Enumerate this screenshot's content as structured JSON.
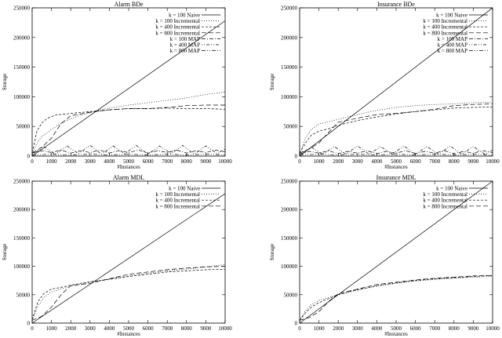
{
  "chart_data": [
    {
      "type": "line",
      "title": "Alarm BDe",
      "xlabel": "#Instances",
      "ylabel": "Storage",
      "xlim": [
        0,
        10000
      ],
      "ylim": [
        0,
        250000
      ],
      "xticks": [
        0,
        1000,
        2000,
        3000,
        4000,
        5000,
        6000,
        7000,
        8000,
        9000,
        10000
      ],
      "yticks": [
        0,
        50000,
        100000,
        150000,
        200000,
        250000
      ],
      "legend_position": "top-right",
      "series": [
        {
          "name": "k = 100 Naive",
          "dash": "solid",
          "x": [
            0,
            10000
          ],
          "y": [
            0,
            228000
          ]
        },
        {
          "name": "k = 100 Incremental",
          "dash": "dotted",
          "x": [
            0,
            250,
            500,
            1000,
            1500,
            2000,
            2500,
            3000,
            3500,
            4000,
            5000,
            6000,
            7000,
            8000,
            9000,
            10000
          ],
          "y": [
            4000,
            22000,
            33000,
            45000,
            55000,
            63000,
            69000,
            73000,
            78000,
            81000,
            86000,
            90000,
            94000,
            98000,
            104000,
            108000
          ]
        },
        {
          "name": "k = 400 Incremental",
          "dash": "shortdash",
          "x": [
            0,
            250,
            500,
            800,
            1200,
            2000,
            3000,
            4000,
            5000,
            6000,
            7000,
            8000,
            9000,
            10000
          ],
          "y": [
            6000,
            42000,
            56000,
            64000,
            69000,
            72000,
            75000,
            78000,
            80000,
            80000,
            81000,
            80000,
            80000,
            79000
          ]
        },
        {
          "name": "k = 800 Incremental",
          "dash": "longdash",
          "x": [
            0,
            500,
            1000,
            1500,
            2000,
            3000,
            4000,
            5000,
            6000,
            7000,
            8000,
            9000,
            10000
          ],
          "y": [
            5000,
            15000,
            30000,
            55000,
            68000,
            74000,
            78000,
            80000,
            80000,
            82000,
            85000,
            86000,
            86000
          ]
        },
        {
          "name": "k = 100 MAP",
          "dash": "dashdot",
          "x": [
            0,
            500,
            1000,
            1500,
            2000,
            2500,
            3000,
            3500,
            4000,
            4500,
            5000,
            5500,
            6000,
            6500,
            7000,
            7500,
            8000,
            8500,
            9000,
            9500,
            10000
          ],
          "y": [
            5000,
            9000,
            6000,
            10000,
            5000,
            9000,
            6000,
            10000,
            5000,
            9000,
            6000,
            10000,
            5000,
            9000,
            6000,
            10000,
            5000,
            9000,
            6000,
            10000,
            7000
          ]
        },
        {
          "name": "k = 400 MAP",
          "dash": "dotdash",
          "x": [
            0,
            600,
            1200,
            1800,
            2400,
            3000,
            3600,
            4200,
            4800,
            5400,
            6000,
            6600,
            7200,
            7800,
            8400,
            9000,
            9600,
            10000
          ],
          "y": [
            2000,
            16000,
            3000,
            17000,
            4000,
            18000,
            3000,
            17000,
            4000,
            18000,
            3000,
            17000,
            4000,
            18000,
            3000,
            17000,
            4000,
            12000
          ]
        },
        {
          "name": "k = 800 MAP",
          "dash": "dashdotdot",
          "x": [
            0,
            1000,
            2000,
            3000,
            4000,
            5000,
            6000,
            7000,
            8000,
            9000,
            10000
          ],
          "y": [
            2000,
            3000,
            2000,
            3000,
            2000,
            3000,
            2000,
            3000,
            2000,
            3000,
            2000
          ]
        }
      ]
    },
    {
      "type": "line",
      "title": "Insurance BDe",
      "xlabel": "#Instances",
      "ylabel": "Storage",
      "xlim": [
        0,
        10000
      ],
      "ylim": [
        0,
        250000
      ],
      "xticks": [
        0,
        1000,
        2000,
        3000,
        4000,
        5000,
        6000,
        7000,
        8000,
        9000,
        10000
      ],
      "yticks": [
        0,
        50000,
        100000,
        150000,
        200000,
        250000
      ],
      "legend_position": "top-right",
      "series": [
        {
          "name": "k = 100 Naive",
          "dash": "solid",
          "x": [
            0,
            10000
          ],
          "y": [
            0,
            250000
          ]
        },
        {
          "name": "k = 100 Incremental",
          "dash": "dotted",
          "x": [
            0,
            300,
            600,
            1000,
            1500,
            2000,
            3000,
            4000,
            5000,
            6000,
            7000,
            8000,
            9000,
            10000
          ],
          "y": [
            4000,
            30000,
            45000,
            54000,
            58000,
            62000,
            70000,
            77000,
            82000,
            85000,
            87000,
            88000,
            90000,
            91000
          ]
        },
        {
          "name": "k = 400 Incremental",
          "dash": "shortdash",
          "x": [
            0,
            300,
            600,
            1000,
            1500,
            2000,
            3000,
            4000,
            5000,
            6000,
            7000,
            8000,
            9000,
            10000
          ],
          "y": [
            5000,
            22000,
            35000,
            42000,
            46000,
            52000,
            60000,
            66000,
            71000,
            75000,
            78000,
            81000,
            82000,
            83000
          ]
        },
        {
          "name": "k = 800 Incremental",
          "dash": "longdash",
          "x": [
            0,
            500,
            1000,
            1500,
            2000,
            3000,
            4000,
            5000,
            6000,
            7000,
            8000,
            9000,
            10000
          ],
          "y": [
            5000,
            12000,
            22000,
            40000,
            57000,
            64000,
            70000,
            72000,
            75000,
            79000,
            85000,
            87000,
            88000
          ]
        },
        {
          "name": "k = 100 MAP",
          "dash": "dashdot",
          "x": [
            0,
            500,
            1000,
            1500,
            2000,
            2500,
            3000,
            3500,
            4000,
            4500,
            5000,
            5500,
            6000,
            6500,
            7000,
            7500,
            8000,
            8500,
            9000,
            9500,
            10000
          ],
          "y": [
            4000,
            8000,
            5000,
            9000,
            4000,
            8000,
            5000,
            9000,
            4000,
            8000,
            5000,
            9000,
            4000,
            8000,
            5000,
            9000,
            4000,
            8000,
            5000,
            9000,
            6000
          ]
        },
        {
          "name": "k = 400 MAP",
          "dash": "dotdash",
          "x": [
            0,
            600,
            1200,
            1800,
            2400,
            3000,
            3600,
            4200,
            4800,
            5400,
            6000,
            6600,
            7200,
            7800,
            8400,
            9000,
            9600,
            10000
          ],
          "y": [
            2000,
            15000,
            3000,
            16000,
            3000,
            17000,
            3000,
            16000,
            3000,
            17000,
            3000,
            16000,
            3000,
            17000,
            3000,
            16000,
            3000,
            10000
          ]
        },
        {
          "name": "k = 800 MAP",
          "dash": "dashdotdot",
          "x": [
            0,
            1000,
            2000,
            3000,
            4000,
            5000,
            6000,
            7000,
            8000,
            9000,
            10000
          ],
          "y": [
            2000,
            3000,
            2000,
            3000,
            2000,
            3000,
            2000,
            3000,
            2000,
            3000,
            2000
          ]
        }
      ]
    },
    {
      "type": "line",
      "title": "Alarm MDL",
      "xlabel": "#Instances",
      "ylabel": "Storage",
      "xlim": [
        0,
        10000
      ],
      "ylim": [
        0,
        250000
      ],
      "xticks": [
        0,
        1000,
        2000,
        3000,
        4000,
        5000,
        6000,
        7000,
        8000,
        9000,
        10000
      ],
      "yticks": [
        0,
        50000,
        100000,
        150000,
        200000,
        250000
      ],
      "legend_position": "top-right",
      "series": [
        {
          "name": "k = 100 Naive",
          "dash": "solid",
          "x": [
            0,
            10000
          ],
          "y": [
            0,
            228000
          ]
        },
        {
          "name": "k = 100 Incremental",
          "dash": "dotted",
          "x": [
            0,
            300,
            600,
            1000,
            1500,
            2000,
            3000,
            4000,
            5000,
            6000,
            7000,
            8000,
            9000,
            10000
          ],
          "y": [
            5000,
            30000,
            45000,
            55000,
            60000,
            65000,
            72000,
            78000,
            83000,
            88000,
            92000,
            95000,
            99000,
            103000
          ]
        },
        {
          "name": "k = 400 Incremental",
          "dash": "shortdash",
          "x": [
            0,
            300,
            600,
            1000,
            1500,
            2000,
            3000,
            4000,
            5000,
            6000,
            7000,
            8000,
            9000,
            10000
          ],
          "y": [
            6000,
            38000,
            52000,
            60000,
            63000,
            67000,
            73000,
            77000,
            82000,
            86000,
            90000,
            92000,
            94000,
            95000
          ]
        },
        {
          "name": "k = 800 Incremental",
          "dash": "longdash",
          "x": [
            0,
            500,
            1000,
            1500,
            2000,
            3000,
            4000,
            5000,
            6000,
            7000,
            8000,
            9000,
            10000
          ],
          "y": [
            5000,
            12000,
            28000,
            50000,
            66000,
            70000,
            78000,
            86000,
            90000,
            94000,
            97000,
            99000,
            100000
          ]
        }
      ]
    },
    {
      "type": "line",
      "title": "Insurance MDL",
      "xlabel": "#Instances",
      "ylabel": "Storage",
      "xlim": [
        0,
        10000
      ],
      "ylim": [
        0,
        250000
      ],
      "xticks": [
        0,
        1000,
        2000,
        3000,
        4000,
        5000,
        6000,
        7000,
        8000,
        9000,
        10000
      ],
      "yticks": [
        0,
        50000,
        100000,
        150000,
        200000,
        250000
      ],
      "legend_position": "top-right",
      "series": [
        {
          "name": "k = 100 Naive",
          "dash": "solid",
          "x": [
            0,
            10000
          ],
          "y": [
            0,
            250000
          ]
        },
        {
          "name": "k = 100 Incremental",
          "dash": "dotted",
          "x": [
            0,
            300,
            600,
            1000,
            1500,
            2000,
            3000,
            4000,
            5000,
            6000,
            7000,
            8000,
            9000,
            10000
          ],
          "y": [
            5000,
            22000,
            32000,
            40000,
            45000,
            50000,
            58000,
            65000,
            70000,
            74000,
            77000,
            79000,
            81000,
            82000
          ]
        },
        {
          "name": "k = 400 Incremental",
          "dash": "shortdash",
          "x": [
            0,
            300,
            600,
            1000,
            1500,
            2000,
            3000,
            4000,
            5000,
            6000,
            7000,
            8000,
            9000,
            10000
          ],
          "y": [
            5000,
            18000,
            28000,
            36000,
            43000,
            50000,
            59000,
            66000,
            71000,
            75000,
            78000,
            80000,
            82000,
            84000
          ]
        },
        {
          "name": "k = 800 Incremental",
          "dash": "longdash",
          "x": [
            0,
            500,
            1000,
            1500,
            2000,
            3000,
            4000,
            5000,
            6000,
            7000,
            8000,
            9000,
            10000
          ],
          "y": [
            5000,
            10000,
            20000,
            38000,
            52000,
            60000,
            68000,
            72000,
            76000,
            79000,
            81000,
            83000,
            84000
          ]
        }
      ]
    }
  ]
}
